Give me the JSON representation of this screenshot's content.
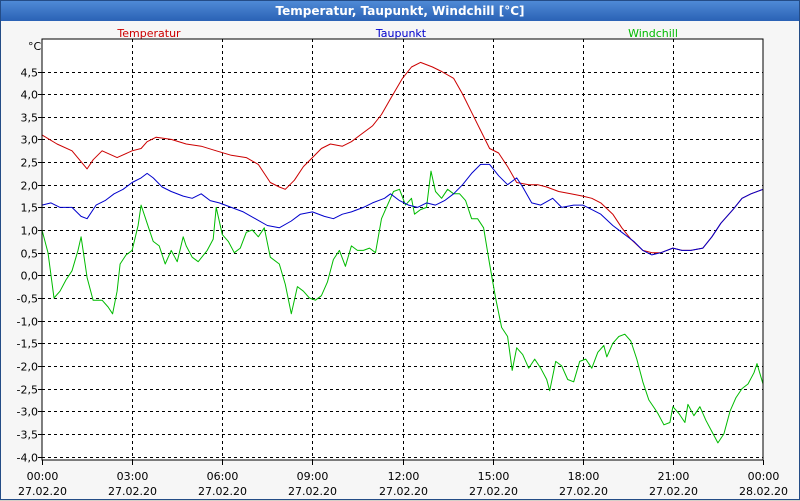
{
  "window": {
    "title": "Temperatur, Taupunkt, Windchill [°C]"
  },
  "colors": {
    "temperatur": "#cc0000",
    "taupunkt": "#0000cc",
    "windchill": "#00bb00"
  },
  "chart_data": {
    "type": "line",
    "title": "Temperatur, Taupunkt, Windchill [°C]",
    "ylabel": "°C",
    "xlabel": "",
    "ylim": [
      -4.0,
      5.0
    ],
    "xlim": [
      0,
      24
    ],
    "grid": true,
    "yticks": [
      "4,5",
      "4,0",
      "3,5",
      "3,0",
      "2,5",
      "2,0",
      "1,5",
      "1,0",
      "0,5",
      "0,0",
      "-0,5",
      "-1,0",
      "-1,5",
      "-2,0",
      "-2,5",
      "-3,0",
      "-3,5",
      "-4,0"
    ],
    "ytick_values": [
      4.5,
      4.0,
      3.5,
      3.0,
      2.5,
      2.0,
      1.5,
      1.0,
      0.5,
      0.0,
      -0.5,
      -1.0,
      -1.5,
      -2.0,
      -2.5,
      -3.0,
      -3.5,
      -4.0
    ],
    "xticks": [
      {
        "time": "00:00",
        "date": "27.02.20",
        "x": 0
      },
      {
        "time": "03:00",
        "date": "27.02.20",
        "x": 3
      },
      {
        "time": "06:00",
        "date": "27.02.20",
        "x": 6
      },
      {
        "time": "09:00",
        "date": "27.02.20",
        "x": 9
      },
      {
        "time": "12:00",
        "date": "27.02.20",
        "x": 12
      },
      {
        "time": "15:00",
        "date": "27.02.20",
        "x": 15
      },
      {
        "time": "18:00",
        "date": "27.02.20",
        "x": 18
      },
      {
        "time": "21:00",
        "date": "27.02.20",
        "x": 21
      },
      {
        "time": "00:00",
        "date": "28.02.20",
        "x": 24
      }
    ],
    "series": [
      {
        "name": "Temperatur",
        "color": "#cc0000",
        "points": [
          [
            0,
            3.1
          ],
          [
            0.5,
            2.9
          ],
          [
            1,
            2.75
          ],
          [
            1.5,
            2.35
          ],
          [
            1.7,
            2.55
          ],
          [
            2,
            2.75
          ],
          [
            2.5,
            2.6
          ],
          [
            3,
            2.75
          ],
          [
            3.3,
            2.8
          ],
          [
            3.5,
            2.95
          ],
          [
            3.8,
            3.05
          ],
          [
            4.3,
            3.0
          ],
          [
            4.8,
            2.9
          ],
          [
            5.3,
            2.85
          ],
          [
            5.8,
            2.75
          ],
          [
            6.3,
            2.65
          ],
          [
            6.8,
            2.6
          ],
          [
            7.2,
            2.45
          ],
          [
            7.6,
            2.05
          ],
          [
            7.9,
            1.95
          ],
          [
            8.1,
            1.9
          ],
          [
            8.4,
            2.1
          ],
          [
            8.7,
            2.4
          ],
          [
            9.0,
            2.6
          ],
          [
            9.3,
            2.8
          ],
          [
            9.6,
            2.9
          ],
          [
            10.0,
            2.85
          ],
          [
            10.3,
            2.95
          ],
          [
            10.6,
            3.1
          ],
          [
            11.0,
            3.3
          ],
          [
            11.3,
            3.55
          ],
          [
            11.6,
            3.9
          ],
          [
            12.0,
            4.35
          ],
          [
            12.3,
            4.6
          ],
          [
            12.6,
            4.7
          ],
          [
            13.0,
            4.6
          ],
          [
            13.3,
            4.5
          ],
          [
            13.7,
            4.35
          ],
          [
            14.0,
            4.0
          ],
          [
            14.3,
            3.6
          ],
          [
            14.6,
            3.2
          ],
          [
            14.9,
            2.8
          ],
          [
            15.2,
            2.7
          ],
          [
            15.5,
            2.4
          ],
          [
            15.8,
            2.05
          ],
          [
            16.2,
            2.0
          ],
          [
            16.5,
            2.0
          ],
          [
            16.8,
            1.95
          ],
          [
            17.2,
            1.85
          ],
          [
            17.6,
            1.8
          ],
          [
            18.0,
            1.75
          ],
          [
            18.3,
            1.7
          ],
          [
            18.6,
            1.6
          ],
          [
            19.0,
            1.35
          ],
          [
            19.3,
            1.05
          ],
          [
            19.6,
            0.8
          ],
          [
            20.0,
            0.55
          ],
          [
            20.3,
            0.5
          ],
          [
            20.6,
            0.5
          ],
          [
            21.0,
            0.6
          ],
          [
            21.3,
            0.55
          ],
          [
            21.6,
            0.55
          ],
          [
            22.0,
            0.6
          ],
          [
            22.3,
            0.85
          ],
          [
            22.6,
            1.15
          ],
          [
            23.0,
            1.45
          ],
          [
            23.3,
            1.7
          ],
          [
            23.6,
            1.8
          ],
          [
            24.0,
            1.9
          ]
        ]
      },
      {
        "name": "Taupunkt",
        "color": "#0000cc",
        "points": [
          [
            0,
            1.55
          ],
          [
            0.3,
            1.6
          ],
          [
            0.6,
            1.5
          ],
          [
            1.0,
            1.5
          ],
          [
            1.3,
            1.3
          ],
          [
            1.5,
            1.25
          ],
          [
            1.8,
            1.55
          ],
          [
            2.1,
            1.65
          ],
          [
            2.4,
            1.8
          ],
          [
            2.7,
            1.9
          ],
          [
            3.0,
            2.05
          ],
          [
            3.3,
            2.15
          ],
          [
            3.5,
            2.25
          ],
          [
            3.7,
            2.15
          ],
          [
            4.0,
            1.95
          ],
          [
            4.3,
            1.85
          ],
          [
            4.7,
            1.75
          ],
          [
            5.0,
            1.7
          ],
          [
            5.3,
            1.8
          ],
          [
            5.6,
            1.65
          ],
          [
            5.9,
            1.6
          ],
          [
            6.3,
            1.5
          ],
          [
            6.7,
            1.4
          ],
          [
            7.1,
            1.25
          ],
          [
            7.5,
            1.1
          ],
          [
            7.9,
            1.05
          ],
          [
            8.3,
            1.2
          ],
          [
            8.6,
            1.35
          ],
          [
            9.0,
            1.4
          ],
          [
            9.4,
            1.3
          ],
          [
            9.7,
            1.25
          ],
          [
            10.0,
            1.35
          ],
          [
            10.3,
            1.4
          ],
          [
            10.7,
            1.5
          ],
          [
            11.0,
            1.6
          ],
          [
            11.4,
            1.7
          ],
          [
            11.6,
            1.8
          ],
          [
            11.9,
            1.65
          ],
          [
            12.2,
            1.55
          ],
          [
            12.5,
            1.5
          ],
          [
            12.8,
            1.6
          ],
          [
            13.1,
            1.55
          ],
          [
            13.4,
            1.65
          ],
          [
            13.7,
            1.8
          ],
          [
            14.0,
            2.0
          ],
          [
            14.3,
            2.25
          ],
          [
            14.6,
            2.45
          ],
          [
            14.9,
            2.45
          ],
          [
            15.2,
            2.2
          ],
          [
            15.5,
            2.0
          ],
          [
            15.8,
            2.15
          ],
          [
            16.0,
            1.95
          ],
          [
            16.3,
            1.6
          ],
          [
            16.6,
            1.55
          ],
          [
            17.0,
            1.7
          ],
          [
            17.3,
            1.5
          ],
          [
            17.7,
            1.55
          ],
          [
            18.0,
            1.55
          ],
          [
            18.3,
            1.45
          ],
          [
            18.6,
            1.35
          ],
          [
            19.0,
            1.1
          ],
          [
            19.3,
            0.95
          ],
          [
            19.7,
            0.75
          ],
          [
            20.0,
            0.55
          ],
          [
            20.3,
            0.45
          ],
          [
            20.6,
            0.5
          ],
          [
            21.0,
            0.6
          ],
          [
            21.3,
            0.55
          ],
          [
            21.6,
            0.55
          ],
          [
            22.0,
            0.6
          ],
          [
            22.3,
            0.85
          ],
          [
            22.6,
            1.15
          ],
          [
            23.0,
            1.45
          ],
          [
            23.3,
            1.7
          ],
          [
            23.6,
            1.8
          ],
          [
            24.0,
            1.9
          ]
        ]
      },
      {
        "name": "Windchill",
        "color": "#00bb00",
        "points": [
          [
            0,
            1.0
          ],
          [
            0.2,
            0.5
          ],
          [
            0.4,
            -0.5
          ],
          [
            0.6,
            -0.35
          ],
          [
            0.8,
            -0.1
          ],
          [
            1.0,
            0.1
          ],
          [
            1.2,
            0.55
          ],
          [
            1.3,
            0.85
          ],
          [
            1.5,
            -0.05
          ],
          [
            1.7,
            -0.55
          ],
          [
            2.0,
            -0.55
          ],
          [
            2.2,
            -0.7
          ],
          [
            2.35,
            -0.85
          ],
          [
            2.5,
            -0.35
          ],
          [
            2.6,
            0.25
          ],
          [
            2.8,
            0.45
          ],
          [
            3.0,
            0.55
          ],
          [
            3.2,
            1.1
          ],
          [
            3.3,
            1.55
          ],
          [
            3.5,
            1.15
          ],
          [
            3.7,
            0.75
          ],
          [
            3.9,
            0.65
          ],
          [
            4.1,
            0.25
          ],
          [
            4.3,
            0.55
          ],
          [
            4.5,
            0.3
          ],
          [
            4.7,
            0.85
          ],
          [
            4.8,
            0.65
          ],
          [
            5.0,
            0.4
          ],
          [
            5.2,
            0.3
          ],
          [
            5.5,
            0.55
          ],
          [
            5.7,
            0.8
          ],
          [
            5.8,
            1.5
          ],
          [
            6.0,
            0.9
          ],
          [
            6.2,
            0.75
          ],
          [
            6.4,
            0.5
          ],
          [
            6.6,
            0.6
          ],
          [
            6.8,
            0.95
          ],
          [
            7.0,
            1.0
          ],
          [
            7.2,
            0.85
          ],
          [
            7.4,
            1.05
          ],
          [
            7.6,
            0.4
          ],
          [
            7.9,
            0.25
          ],
          [
            8.1,
            -0.2
          ],
          [
            8.3,
            -0.85
          ],
          [
            8.5,
            -0.25
          ],
          [
            8.7,
            -0.35
          ],
          [
            8.9,
            -0.5
          ],
          [
            9.1,
            -0.55
          ],
          [
            9.3,
            -0.45
          ],
          [
            9.5,
            -0.15
          ],
          [
            9.7,
            0.35
          ],
          [
            9.9,
            0.55
          ],
          [
            10.1,
            0.2
          ],
          [
            10.3,
            0.65
          ],
          [
            10.5,
            0.55
          ],
          [
            10.7,
            0.55
          ],
          [
            10.9,
            0.6
          ],
          [
            11.1,
            0.5
          ],
          [
            11.3,
            1.25
          ],
          [
            11.5,
            1.55
          ],
          [
            11.7,
            1.85
          ],
          [
            11.9,
            1.9
          ],
          [
            12.1,
            1.55
          ],
          [
            12.3,
            1.7
          ],
          [
            12.4,
            1.35
          ],
          [
            12.6,
            1.45
          ],
          [
            12.8,
            1.5
          ],
          [
            12.95,
            2.3
          ],
          [
            13.1,
            1.85
          ],
          [
            13.3,
            1.7
          ],
          [
            13.5,
            1.9
          ],
          [
            13.7,
            1.8
          ],
          [
            13.9,
            1.8
          ],
          [
            14.1,
            1.65
          ],
          [
            14.3,
            1.25
          ],
          [
            14.5,
            1.25
          ],
          [
            14.7,
            1.05
          ],
          [
            14.9,
            0.25
          ],
          [
            15.1,
            -0.5
          ],
          [
            15.3,
            -1.15
          ],
          [
            15.5,
            -1.35
          ],
          [
            15.65,
            -2.1
          ],
          [
            15.8,
            -1.6
          ],
          [
            16.0,
            -1.75
          ],
          [
            16.2,
            -2.05
          ],
          [
            16.4,
            -1.85
          ],
          [
            16.6,
            -2.05
          ],
          [
            16.8,
            -2.3
          ],
          [
            16.9,
            -2.55
          ],
          [
            17.1,
            -1.9
          ],
          [
            17.3,
            -2.0
          ],
          [
            17.5,
            -2.3
          ],
          [
            17.7,
            -2.35
          ],
          [
            17.9,
            -1.9
          ],
          [
            18.1,
            -1.85
          ],
          [
            18.3,
            -2.05
          ],
          [
            18.5,
            -1.7
          ],
          [
            18.7,
            -1.55
          ],
          [
            18.8,
            -1.8
          ],
          [
            19.0,
            -1.5
          ],
          [
            19.2,
            -1.35
          ],
          [
            19.4,
            -1.3
          ],
          [
            19.6,
            -1.45
          ],
          [
            19.8,
            -1.85
          ],
          [
            20.0,
            -2.35
          ],
          [
            20.2,
            -2.75
          ],
          [
            20.4,
            -2.95
          ],
          [
            20.5,
            -3.05
          ],
          [
            20.7,
            -3.3
          ],
          [
            20.9,
            -3.25
          ],
          [
            21.0,
            -2.9
          ],
          [
            21.2,
            -3.05
          ],
          [
            21.4,
            -3.25
          ],
          [
            21.5,
            -2.85
          ],
          [
            21.7,
            -3.1
          ],
          [
            21.9,
            -2.9
          ],
          [
            22.1,
            -3.2
          ],
          [
            22.3,
            -3.45
          ],
          [
            22.5,
            -3.7
          ],
          [
            22.7,
            -3.5
          ],
          [
            22.9,
            -3.0
          ],
          [
            23.1,
            -2.7
          ],
          [
            23.3,
            -2.5
          ],
          [
            23.5,
            -2.4
          ],
          [
            23.7,
            -2.15
          ],
          [
            23.8,
            -1.95
          ],
          [
            24.0,
            -2.4
          ]
        ]
      }
    ],
    "legend": [
      {
        "label": "Temperatur",
        "color": "#cc0000"
      },
      {
        "label": "Taupunkt",
        "color": "#0000cc"
      },
      {
        "label": "Windchill",
        "color": "#00bb00"
      }
    ]
  }
}
